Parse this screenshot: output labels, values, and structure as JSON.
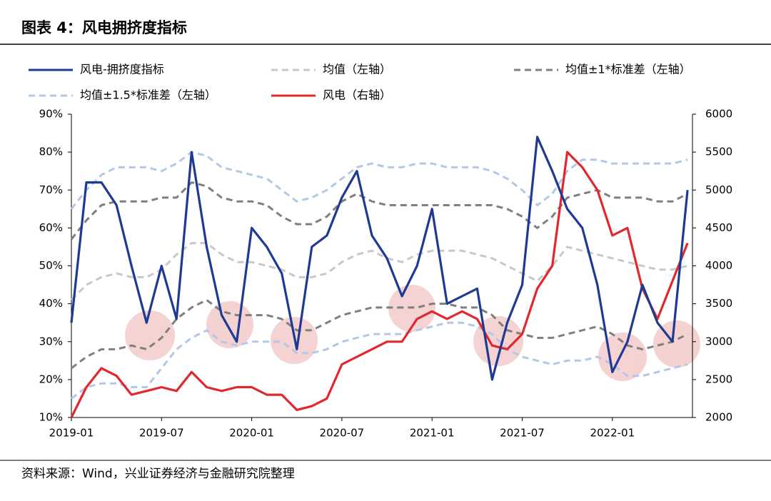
{
  "chart_data": {
    "type": "line",
    "title": "图表 4：风电拥挤度指标",
    "source": "资料来源：Wind，兴业证券经济与金融研究院整理",
    "x": [
      "2019-01",
      "2019-02",
      "2019-03",
      "2019-04",
      "2019-05",
      "2019-06",
      "2019-07",
      "2019-08",
      "2019-09",
      "2019-10",
      "2019-11",
      "2019-12",
      "2020-01",
      "2020-02",
      "2020-03",
      "2020-04",
      "2020-05",
      "2020-06",
      "2020-07",
      "2020-08",
      "2020-09",
      "2020-10",
      "2020-11",
      "2020-12",
      "2021-01",
      "2021-02",
      "2021-03",
      "2021-04",
      "2021-05",
      "2021-06",
      "2021-07",
      "2021-08",
      "2021-09",
      "2021-10",
      "2021-11",
      "2021-12",
      "2022-01",
      "2022-02",
      "2022-03",
      "2022-04",
      "2022-05",
      "2022-06"
    ],
    "xticks": [
      "2019-01",
      "2019-07",
      "2020-01",
      "2020-07",
      "2021-01",
      "2021-07",
      "2022-01"
    ],
    "ylim": [
      10,
      90
    ],
    "yticks": [
      {
        "value": 10,
        "label": "10%"
      },
      {
        "value": 20,
        "label": "20%"
      },
      {
        "value": 30,
        "label": "30%"
      },
      {
        "value": 40,
        "label": "40%"
      },
      {
        "value": 50,
        "label": "50%"
      },
      {
        "value": 60,
        "label": "60%"
      },
      {
        "value": 70,
        "label": "70%"
      },
      {
        "value": 80,
        "label": "80%"
      },
      {
        "value": 90,
        "label": "90%"
      }
    ],
    "y2lim": [
      2000,
      6000
    ],
    "y2ticks": [
      2000,
      2500,
      3000,
      3500,
      4000,
      4500,
      5000,
      5500,
      6000
    ],
    "series": [
      {
        "name": "风电-拥挤度指标",
        "color": "#1f3a93",
        "style": "solid",
        "values": [
          35,
          72,
          72,
          66,
          50,
          35,
          50,
          36,
          80,
          55,
          37,
          30,
          60,
          55,
          48,
          28,
          55,
          58,
          68,
          75,
          58,
          52,
          42,
          50,
          65,
          40,
          42,
          44,
          20,
          35,
          45,
          84,
          75,
          65,
          60,
          45,
          22,
          30,
          45,
          35,
          30,
          70
        ]
      },
      {
        "name": "均值（左轴）",
        "color": "#c8c8c8",
        "style": "dashed",
        "values": [
          41,
          45,
          47,
          48,
          47,
          47,
          49,
          53,
          56,
          56,
          53,
          51,
          51,
          50,
          49,
          47,
          47,
          48,
          51,
          53,
          54,
          52,
          51,
          53,
          54,
          54,
          54,
          53,
          52,
          50,
          48,
          46,
          50,
          55,
          54,
          53,
          52,
          51,
          50,
          49,
          49,
          50
        ]
      },
      {
        "name": "均值±1*标准差（左轴）",
        "color": "#7f7f7f",
        "style": "dashed",
        "values": [
          57,
          62,
          66,
          67,
          67,
          67,
          68,
          68,
          72,
          71,
          68,
          67,
          67,
          66,
          63,
          61,
          61,
          63,
          67,
          69,
          67,
          66,
          66,
          66,
          66,
          66,
          66,
          66,
          66,
          65,
          63,
          60,
          63,
          68,
          69,
          70,
          68,
          68,
          68,
          67,
          67,
          69
        ]
      },
      {
        "color": "#7f7f7f",
        "style": "dashed",
        "values": [
          23,
          26,
          28,
          28,
          29,
          28,
          31,
          36,
          39,
          41,
          38,
          37,
          37,
          37,
          36,
          33,
          33,
          35,
          37,
          38,
          39,
          39,
          39,
          39,
          40,
          40,
          39,
          39,
          37,
          33,
          32,
          31,
          31,
          32,
          33,
          34,
          32,
          29,
          28,
          29,
          30,
          32
        ]
      },
      {
        "name": "均值±1.5*标准差（左轴）",
        "color": "#b4c7e7",
        "style": "dashed",
        "values": [
          65,
          70,
          74,
          76,
          76,
          76,
          75,
          77,
          80,
          79,
          76,
          75,
          74,
          73,
          70,
          67,
          68,
          70,
          73,
          76,
          77,
          76,
          76,
          77,
          77,
          76,
          76,
          76,
          75,
          73,
          70,
          66,
          69,
          75,
          78,
          78,
          77,
          77,
          77,
          77,
          77,
          78
        ]
      },
      {
        "color": "#b4c7e7",
        "style": "dashed",
        "values": [
          15,
          18,
          19,
          19,
          18,
          18,
          23,
          28,
          31,
          33,
          30,
          29,
          30,
          30,
          30,
          27,
          27,
          28,
          30,
          31,
          32,
          32,
          32,
          33,
          34,
          35,
          35,
          34,
          32,
          28,
          26,
          25,
          24,
          25,
          25,
          26,
          24,
          21,
          21,
          22,
          23,
          24
        ]
      },
      {
        "name": "风电（右轴）",
        "color": "#e0282e",
        "style": "solid",
        "axis": "y2",
        "values": [
          2000,
          2400,
          2650,
          2550,
          2300,
          2350,
          2400,
          2350,
          2600,
          2400,
          2350,
          2400,
          2400,
          2300,
          2300,
          2100,
          2150,
          2250,
          2700,
          2800,
          2900,
          3000,
          3000,
          3300,
          3400,
          3300,
          3400,
          3300,
          2950,
          2900,
          3100,
          3700,
          4000,
          5500,
          5300,
          5000,
          4400,
          4500,
          3700,
          3300,
          3800,
          4300
        ]
      }
    ]
  }
}
